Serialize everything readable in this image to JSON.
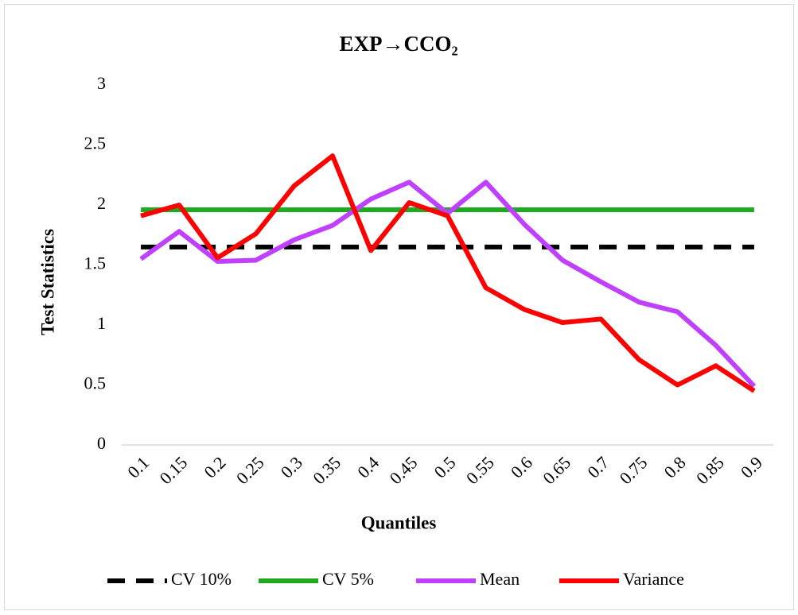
{
  "chart_data": {
    "type": "line",
    "title": "EXP→CCO₂",
    "x_label": "Quantiles",
    "y_label": "Test Statistics",
    "categories": [
      "0.1",
      "0.15",
      "0.2",
      "0.25",
      "0.3",
      "0.35",
      "0.4",
      "0.45",
      "0.5",
      "0.55",
      "0.6",
      "0.65",
      "0.7",
      "0.75",
      "0.8",
      "0.85",
      "0.9"
    ],
    "series": [
      {
        "name": "CV 10%",
        "color": "#000000",
        "dashed": true,
        "values": [
          1.65,
          1.65,
          1.65,
          1.65,
          1.65,
          1.65,
          1.65,
          1.65,
          1.65,
          1.65,
          1.65,
          1.65,
          1.65,
          1.65,
          1.65,
          1.65,
          1.65
        ]
      },
      {
        "name": "CV 5%",
        "color": "#1faa1f",
        "dashed": false,
        "values": [
          1.96,
          1.96,
          1.96,
          1.96,
          1.96,
          1.96,
          1.96,
          1.96,
          1.96,
          1.96,
          1.96,
          1.96,
          1.96,
          1.96,
          1.96,
          1.96,
          1.96
        ]
      },
      {
        "name": "Mean",
        "color": "#c040ff",
        "dashed": false,
        "values": [
          1.55,
          1.78,
          1.53,
          1.54,
          1.71,
          1.83,
          2.05,
          2.19,
          1.93,
          2.19,
          1.84,
          1.54,
          1.36,
          1.19,
          1.11,
          0.83,
          0.49
        ]
      },
      {
        "name": "Variance",
        "color": "#ff0000",
        "dashed": false,
        "values": [
          1.91,
          2.0,
          1.56,
          1.76,
          2.16,
          2.41,
          1.62,
          2.02,
          1.91,
          1.31,
          1.13,
          1.02,
          1.05,
          0.71,
          0.5,
          0.66,
          0.45
        ]
      }
    ],
    "ylim": [
      0,
      3
    ],
    "yticks": [
      0,
      0.5,
      1,
      1.5,
      2,
      2.5,
      3
    ],
    "grid": false,
    "legend": "bottom"
  }
}
